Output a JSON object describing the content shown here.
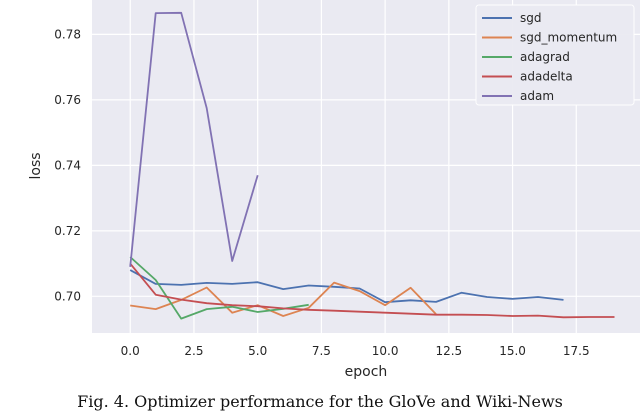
{
  "chart_data": {
    "type": "line",
    "xlabel": "epoch",
    "ylabel": "loss",
    "xlim": [
      -1.5,
      20.0
    ],
    "ylim": [
      0.6888,
      0.7905
    ],
    "xticks": [
      0.0,
      2.5,
      5.0,
      7.5,
      10.0,
      12.5,
      15.0,
      17.5
    ],
    "xtick_labels": [
      "0.0",
      "2.5",
      "5.0",
      "7.5",
      "10.0",
      "12.5",
      "15.0",
      "17.5"
    ],
    "yticks": [
      0.7,
      0.72,
      0.74,
      0.76,
      0.78
    ],
    "ytick_labels": [
      "0.70",
      "0.72",
      "0.74",
      "0.76",
      "0.78"
    ],
    "grid": true,
    "background": "#eaeaf2",
    "legend_position": "top-right",
    "series": [
      {
        "name": "sgd",
        "color": "#4c72b0",
        "x": [
          0,
          1,
          2,
          3,
          4,
          5,
          6,
          7,
          8,
          9,
          10,
          11,
          12,
          13,
          14,
          15,
          16,
          17
        ],
        "y": [
          0.708,
          0.7038,
          0.7035,
          0.7041,
          0.7038,
          0.7043,
          0.7022,
          0.7033,
          0.7029,
          0.7024,
          0.6982,
          0.6988,
          0.6983,
          0.7011,
          0.6998,
          0.6992,
          0.6998,
          0.6989
        ]
      },
      {
        "name": "sgd_momentum",
        "color": "#dd8452",
        "x": [
          0,
          1,
          2,
          3,
          4,
          5,
          6,
          7,
          8,
          9,
          10,
          11,
          12
        ],
        "y": [
          0.6972,
          0.6961,
          0.6989,
          0.7027,
          0.695,
          0.6973,
          0.694,
          0.6965,
          0.7042,
          0.7016,
          0.6973,
          0.7026,
          0.6945
        ]
      },
      {
        "name": "adagrad",
        "color": "#55a868",
        "x": [
          0,
          1,
          2,
          3,
          4,
          5,
          6,
          7
        ],
        "y": [
          0.712,
          0.705,
          0.6932,
          0.6961,
          0.6968,
          0.6952,
          0.6962,
          0.6974
        ]
      },
      {
        "name": "adadelta",
        "color": "#c44e52",
        "x": [
          0,
          1,
          2,
          3,
          4,
          5,
          6,
          7,
          8,
          9,
          10,
          11,
          12,
          13,
          14,
          15,
          16,
          17,
          18,
          19
        ],
        "y": [
          0.71,
          0.7005,
          0.699,
          0.6979,
          0.6973,
          0.697,
          0.6963,
          0.6959,
          0.6956,
          0.6953,
          0.695,
          0.6947,
          0.6944,
          0.6944,
          0.6943,
          0.694,
          0.6941,
          0.6936,
          0.6937,
          0.6937
        ]
      },
      {
        "name": "adam",
        "color": "#8172b3",
        "x": [
          0,
          1,
          2,
          3,
          4,
          5
        ],
        "y": [
          0.709,
          0.7865,
          0.7866,
          0.7575,
          0.7108,
          0.737
        ]
      }
    ]
  },
  "caption": {
    "text": "Fig. 4.   Optimizer performance for the GloVe and Wiki-News"
  }
}
